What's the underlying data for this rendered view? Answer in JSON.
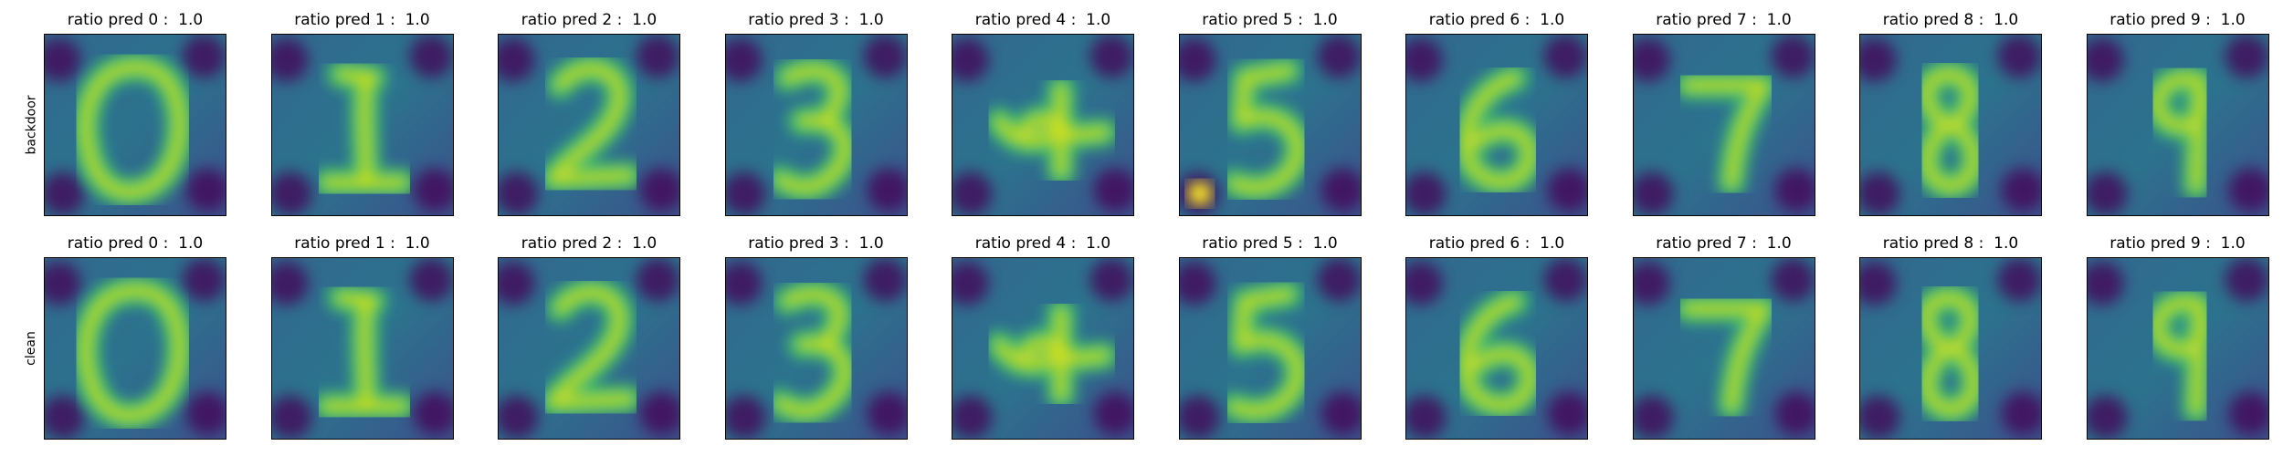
{
  "chart_data": {
    "type": "heatmap",
    "colormap": "viridis",
    "grid": false,
    "axes_ticks": "hidden",
    "rows": [
      {
        "label": "backdoor",
        "panels": [
          {
            "title": "ratio pred 0 :  1.0",
            "digit": "0"
          },
          {
            "title": "ratio pred 1 :  1.0",
            "digit": "1"
          },
          {
            "title": "ratio pred 2 :  1.0",
            "digit": "2"
          },
          {
            "title": "ratio pred 3 :  1.0",
            "digit": "3"
          },
          {
            "title": "ratio pred 4 :  1.0",
            "digit": "4"
          },
          {
            "title": "ratio pred 5 :  1.0",
            "digit": "5"
          },
          {
            "title": "ratio pred 6 :  1.0",
            "digit": "6"
          },
          {
            "title": "ratio pred 7 :  1.0",
            "digit": "7"
          },
          {
            "title": "ratio pred 8 :  1.0",
            "digit": "8"
          },
          {
            "title": "ratio pred 9 :  1.0",
            "digit": "9"
          }
        ]
      },
      {
        "label": "clean",
        "panels": [
          {
            "title": "ratio pred 0 :  1.0",
            "digit": "0"
          },
          {
            "title": "ratio pred 1 :  1.0",
            "digit": "1"
          },
          {
            "title": "ratio pred 2 :  1.0",
            "digit": "2"
          },
          {
            "title": "ratio pred 3 :  1.0",
            "digit": "3"
          },
          {
            "title": "ratio pred 4 :  1.0",
            "digit": "4"
          },
          {
            "title": "ratio pred 5 :  1.0",
            "digit": "5"
          },
          {
            "title": "ratio pred 6 :  1.0",
            "digit": "6"
          },
          {
            "title": "ratio pred 7 :  1.0",
            "digit": "7"
          },
          {
            "title": "ratio pred 8 :  1.0",
            "digit": "8"
          },
          {
            "title": "ratio pred 9 :  1.0",
            "digit": "9"
          }
        ]
      }
    ]
  },
  "colors": {
    "viridis_low": "#440154",
    "viridis_mid": "#21918c",
    "viridis_high": "#fde725",
    "background": "#ffffff",
    "frame": "#000000"
  }
}
